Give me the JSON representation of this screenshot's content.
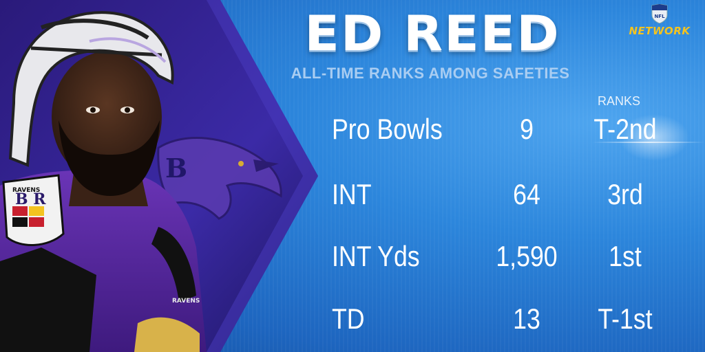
{
  "header": {
    "name": "ED REED",
    "subtitle": "ALL-TIME RANKS AMONG SAFETIES",
    "logo_text": "NETWORK",
    "logo_shield": "NFL"
  },
  "table": {
    "ranks_header": "RANKS",
    "rows": [
      {
        "label": "Pro Bowls",
        "value": "9",
        "rank": "T-2nd"
      },
      {
        "label": "INT",
        "value": "64",
        "rank": "3rd"
      },
      {
        "label": "INT Yds",
        "value": "1,590",
        "rank": "1st"
      },
      {
        "label": "TD",
        "value": "13",
        "rank": "T-1st"
      }
    ]
  },
  "jersey": {
    "patch_top": "RAVENS",
    "chest": "RAVENS"
  },
  "colors": {
    "background": "#2c86dc",
    "panel_purple": "#3a1f8e",
    "jersey_purple": "#5a2ca0",
    "logo_gold": "#f3c320"
  }
}
